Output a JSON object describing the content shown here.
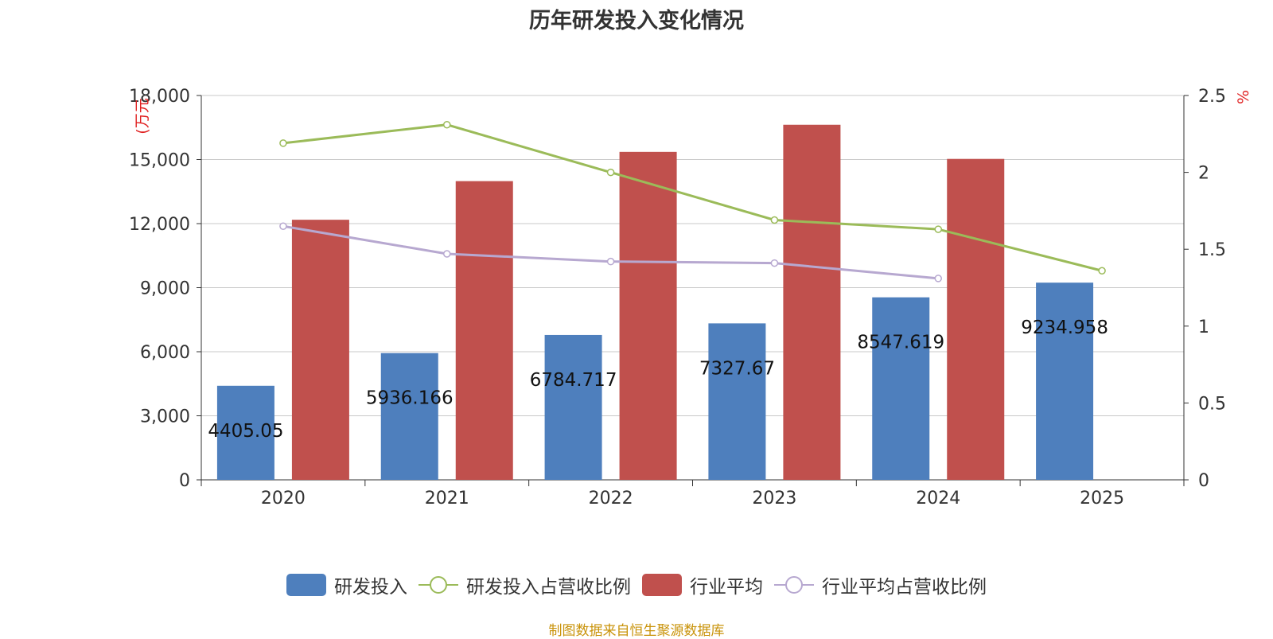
{
  "colors": {
    "rd_bar": "#4e7fbd",
    "industry_bar": "#c0504d",
    "rd_ratio_line": "#9bbb59",
    "industry_ratio_line": "#b7a8d0",
    "axis_unit": "#e02020",
    "footer": "#c9930a",
    "grid": "#c8c8c8",
    "axis": "#333333"
  },
  "chart_data": {
    "type": "bar",
    "title": "历年研发投入变化情况",
    "categories": [
      "2020",
      "2021",
      "2022",
      "2023",
      "2024",
      "2025"
    ],
    "y_left": {
      "unit": "(万元",
      "ticks": [
        "0",
        "3,000",
        "6,000",
        "9,000",
        "12,000",
        "15,000",
        "18,000"
      ],
      "range": [
        0,
        18000
      ]
    },
    "y_right": {
      "unit": "%",
      "ticks": [
        "0",
        "0.5",
        "1",
        "1.5",
        "2",
        "2.5"
      ],
      "range": [
        0,
        2.5
      ]
    },
    "series": [
      {
        "name": "研发投入",
        "type": "bar",
        "axis": "left",
        "values": [
          4405.05,
          5936.166,
          6784.717,
          7327.67,
          8547.619,
          9234.958
        ],
        "labels": [
          "4405.05",
          "5936.166",
          "6784.717",
          "7327.67",
          "8547.619",
          "9234.958"
        ]
      },
      {
        "name": "研发投入占营收比例",
        "type": "line",
        "axis": "right",
        "values": [
          2.19,
          2.31,
          2.0,
          1.69,
          1.63,
          1.36
        ]
      },
      {
        "name": "行业平均",
        "type": "bar",
        "axis": "left",
        "values": [
          12180,
          13990,
          15360,
          16630,
          15030,
          null
        ]
      },
      {
        "name": "行业平均占营收比例",
        "type": "line",
        "axis": "right",
        "values": [
          1.65,
          1.47,
          1.42,
          1.41,
          1.31,
          null
        ]
      }
    ],
    "grid": true,
    "legend_position": "bottom"
  },
  "footer": "制图数据来自恒生聚源数据库"
}
